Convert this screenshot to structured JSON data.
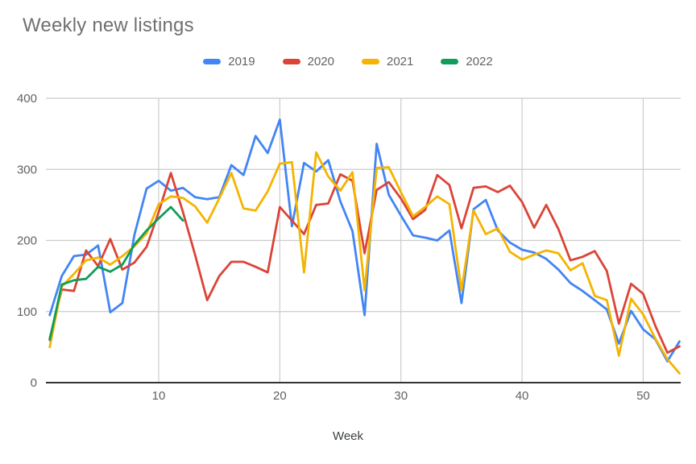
{
  "page": {
    "background": "#ffffff"
  },
  "colors": {
    "grid": "#cccccc",
    "axis_baseline": "#333333",
    "tick_label": "#616161",
    "title_text": "#707070",
    "legend_text": "#5f6368"
  },
  "chart_data": {
    "type": "line",
    "title": "Weekly new listings",
    "xlabel": "Week",
    "ylabel": "",
    "xlim": [
      1,
      53
    ],
    "ylim": [
      0,
      400
    ],
    "grid": true,
    "legend_position": "top",
    "x_ticks": [
      10,
      20,
      30,
      40,
      50
    ],
    "y_ticks": [
      0,
      100,
      200,
      300,
      400
    ],
    "x": [
      1,
      2,
      3,
      4,
      5,
      6,
      7,
      8,
      9,
      10,
      11,
      12,
      13,
      14,
      15,
      16,
      17,
      18,
      19,
      20,
      21,
      22,
      23,
      24,
      25,
      26,
      27,
      28,
      29,
      30,
      31,
      32,
      33,
      34,
      35,
      36,
      37,
      38,
      39,
      40,
      41,
      42,
      43,
      44,
      45,
      46,
      47,
      48,
      49,
      50,
      51,
      52,
      53
    ],
    "series": [
      {
        "name": "2019",
        "color": "#4285f4",
        "values": [
          95,
          150,
          178,
          180,
          193,
          99,
          112,
          208,
          273,
          284,
          270,
          274,
          261,
          258,
          261,
          306,
          292,
          347,
          323,
          370,
          220,
          309,
          297,
          313,
          255,
          213,
          95,
          336,
          264,
          235,
          207,
          204,
          200,
          214,
          112,
          244,
          257,
          214,
          197,
          187,
          183,
          174,
          159,
          140,
          129,
          116,
          103,
          55,
          101,
          75,
          61,
          30,
          58
        ]
      },
      {
        "name": "2020",
        "color": "#db4437",
        "values": [
          62,
          131,
          129,
          186,
          164,
          202,
          159,
          169,
          191,
          240,
          295,
          240,
          180,
          116,
          150,
          170,
          170,
          163,
          155,
          247,
          228,
          209,
          250,
          252,
          293,
          284,
          182,
          271,
          282,
          259,
          230,
          243,
          292,
          278,
          217,
          274,
          276,
          268,
          277,
          254,
          218,
          250,
          216,
          172,
          177,
          185,
          157,
          83,
          139,
          125,
          80,
          42,
          51
        ]
      },
      {
        "name": "2021",
        "color": "#f4b400",
        "values": [
          50,
          135,
          153,
          172,
          176,
          166,
          178,
          192,
          210,
          251,
          262,
          260,
          248,
          225,
          259,
          295,
          245,
          242,
          269,
          308,
          310,
          155,
          324,
          290,
          270,
          296,
          130,
          302,
          303,
          268,
          234,
          247,
          262,
          251,
          130,
          242,
          209,
          217,
          184,
          173,
          180,
          186,
          182,
          158,
          168,
          122,
          116,
          38,
          118,
          96,
          62,
          33,
          13
        ]
      },
      {
        "name": "2022",
        "color": "#0f9d58",
        "values": [
          60,
          138,
          144,
          146,
          163,
          156,
          166,
          194,
          214,
          231,
          247,
          228
        ]
      }
    ]
  }
}
